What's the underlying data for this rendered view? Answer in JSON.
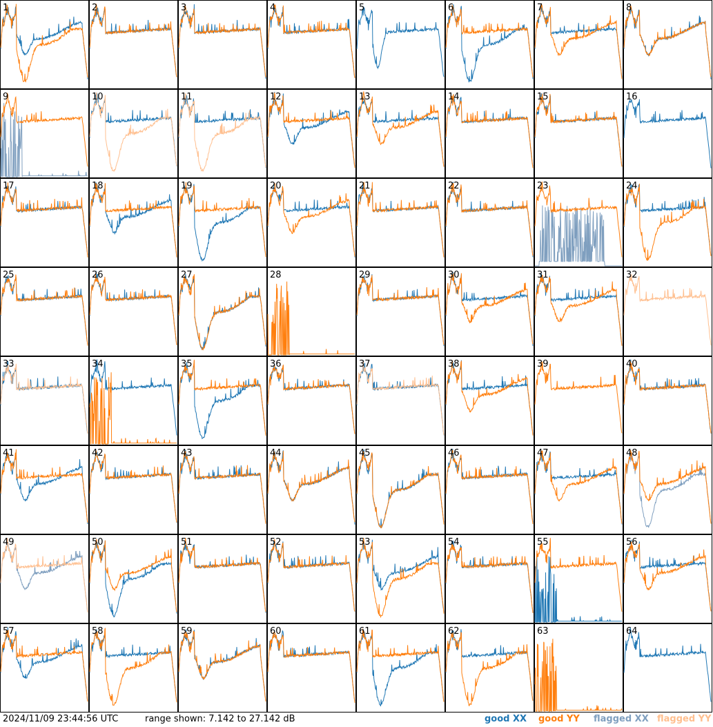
{
  "timestamp": "2024/11/09 23:44:56 UTC",
  "range_text": "range shown: 7.142 to 27.142 dB",
  "legend": {
    "good_xx": "good XX",
    "good_yy": "good YY",
    "flagged_xx": "flagged XX",
    "flagged_yy": "flagged YY"
  },
  "colors": {
    "good_xx": "#1f77b4",
    "good_yy": "#ff7f0e",
    "flagged_xx": "#7f9fbf",
    "flagged_yy": "#ffbf8f"
  },
  "chart_data": {
    "type": "line",
    "layout": "8x8 small multiples",
    "ylim": [
      7.142,
      27.142
    ],
    "yunit": "dB",
    "panels": [
      {
        "id": "1",
        "xx": "good",
        "yy": "good",
        "xx_shape": "mid_dip",
        "yy_shape": "deep_dip"
      },
      {
        "id": "2",
        "xx": "good",
        "yy": "good",
        "xx_shape": "flat",
        "yy_shape": "flat"
      },
      {
        "id": "3",
        "xx": "good",
        "yy": "good",
        "xx_shape": "flat",
        "yy_shape": "flat"
      },
      {
        "id": "4",
        "xx": "good",
        "yy": "good",
        "xx_shape": "flat",
        "yy_shape": "flat"
      },
      {
        "id": "5",
        "xx": "good",
        "yy": "flagged",
        "xx_shape": "dip",
        "yy_shape": "none"
      },
      {
        "id": "6",
        "xx": "good",
        "yy": "good",
        "xx_shape": "deep_dip",
        "yy_shape": "flat"
      },
      {
        "id": "7",
        "xx": "good",
        "yy": "good",
        "xx_shape": "flat",
        "yy_shape": "mid_dip"
      },
      {
        "id": "8",
        "xx": "good",
        "yy": "good",
        "xx_shape": "mid_dip",
        "yy_shape": "mid_dip"
      },
      {
        "id": "9",
        "xx": "flagged",
        "yy": "good",
        "xx_shape": "spikes_low",
        "yy_shape": "flat"
      },
      {
        "id": "10",
        "xx": "good",
        "yy": "flagged",
        "xx_shape": "flat",
        "yy_shape": "deep_dip"
      },
      {
        "id": "11",
        "xx": "good",
        "yy": "flagged",
        "xx_shape": "flat",
        "yy_shape": "deep_dip"
      },
      {
        "id": "12",
        "xx": "good",
        "yy": "good",
        "xx_shape": "mid_dip",
        "yy_shape": "flat"
      },
      {
        "id": "13",
        "xx": "good",
        "yy": "good",
        "xx_shape": "flat",
        "yy_shape": "mid_dip"
      },
      {
        "id": "14",
        "xx": "good",
        "yy": "good",
        "xx_shape": "flat",
        "yy_shape": "flat"
      },
      {
        "id": "15",
        "xx": "good",
        "yy": "good",
        "xx_shape": "flat",
        "yy_shape": "flat"
      },
      {
        "id": "16",
        "xx": "good",
        "yy": "flagged",
        "xx_shape": "flat",
        "yy_shape": "none"
      },
      {
        "id": "17",
        "xx": "good",
        "yy": "good",
        "xx_shape": "flat",
        "yy_shape": "flat"
      },
      {
        "id": "18",
        "xx": "good",
        "yy": "good",
        "xx_shape": "mid_dip",
        "yy_shape": "flat"
      },
      {
        "id": "19",
        "xx": "good",
        "yy": "good",
        "xx_shape": "deep_dip",
        "yy_shape": "flat"
      },
      {
        "id": "20",
        "xx": "good",
        "yy": "good",
        "xx_shape": "flat",
        "yy_shape": "mid_dip"
      },
      {
        "id": "21",
        "xx": "good",
        "yy": "good",
        "xx_shape": "flat",
        "yy_shape": "flat"
      },
      {
        "id": "22",
        "xx": "good",
        "yy": "good",
        "xx_shape": "flat",
        "yy_shape": "flat"
      },
      {
        "id": "23",
        "xx": "flagged",
        "yy": "good",
        "xx_shape": "spikes_mid",
        "yy_shape": "flat"
      },
      {
        "id": "24",
        "xx": "good",
        "yy": "good",
        "xx_shape": "flat",
        "yy_shape": "deep_dip"
      },
      {
        "id": "25",
        "xx": "good",
        "yy": "good",
        "xx_shape": "flat",
        "yy_shape": "flat"
      },
      {
        "id": "26",
        "xx": "good",
        "yy": "good",
        "xx_shape": "flat",
        "yy_shape": "flat"
      },
      {
        "id": "27",
        "xx": "good",
        "yy": "good",
        "xx_shape": "deep_dip",
        "yy_shape": "deep_dip"
      },
      {
        "id": "28",
        "xx": "good",
        "yy": "good",
        "xx_shape": "none",
        "yy_shape": "spikes_low"
      },
      {
        "id": "29",
        "xx": "good",
        "yy": "good",
        "xx_shape": "flat",
        "yy_shape": "flat"
      },
      {
        "id": "30",
        "xx": "good",
        "yy": "good",
        "xx_shape": "flat",
        "yy_shape": "mid_dip"
      },
      {
        "id": "31",
        "xx": "good",
        "yy": "good",
        "xx_shape": "flat",
        "yy_shape": "mid_dip"
      },
      {
        "id": "32",
        "xx": "flagged",
        "yy": "flagged",
        "xx_shape": "none",
        "yy_shape": "flat"
      },
      {
        "id": "33",
        "xx": "good",
        "yy": "flagged",
        "xx_shape": "flat",
        "yy_shape": "flat"
      },
      {
        "id": "34",
        "xx": "good",
        "yy": "good",
        "xx_shape": "flat",
        "yy_shape": "spikes_low"
      },
      {
        "id": "35",
        "xx": "good",
        "yy": "good",
        "xx_shape": "deep_dip",
        "yy_shape": "flat"
      },
      {
        "id": "36",
        "xx": "good",
        "yy": "good",
        "xx_shape": "flat",
        "yy_shape": "flat"
      },
      {
        "id": "37",
        "xx": "good",
        "yy": "flagged",
        "xx_shape": "flat",
        "yy_shape": "flat"
      },
      {
        "id": "38",
        "xx": "good",
        "yy": "good",
        "xx_shape": "flat",
        "yy_shape": "mid_dip"
      },
      {
        "id": "39",
        "xx": "good",
        "yy": "good",
        "xx_shape": "none",
        "yy_shape": "flat"
      },
      {
        "id": "40",
        "xx": "good",
        "yy": "good",
        "xx_shape": "flat",
        "yy_shape": "flat"
      },
      {
        "id": "41",
        "xx": "good",
        "yy": "good",
        "xx_shape": "mid_dip",
        "yy_shape": "flat"
      },
      {
        "id": "42",
        "xx": "good",
        "yy": "good",
        "xx_shape": "flat",
        "yy_shape": "flat"
      },
      {
        "id": "43",
        "xx": "good",
        "yy": "good",
        "xx_shape": "flat",
        "yy_shape": "flat"
      },
      {
        "id": "44",
        "xx": "good",
        "yy": "good",
        "xx_shape": "mid_dip",
        "yy_shape": "mid_dip"
      },
      {
        "id": "45",
        "xx": "good",
        "yy": "good",
        "xx_shape": "deep_dip",
        "yy_shape": "deep_dip"
      },
      {
        "id": "46",
        "xx": "good",
        "yy": "good",
        "xx_shape": "flat",
        "yy_shape": "flat"
      },
      {
        "id": "47",
        "xx": "good",
        "yy": "good",
        "xx_shape": "flat",
        "yy_shape": "mid_dip"
      },
      {
        "id": "48",
        "xx": "flagged",
        "yy": "good",
        "xx_shape": "deep_dip",
        "yy_shape": "mid_dip"
      },
      {
        "id": "49",
        "xx": "flagged",
        "yy": "flagged",
        "xx_shape": "mid_dip",
        "yy_shape": "flat"
      },
      {
        "id": "50",
        "xx": "good",
        "yy": "good",
        "xx_shape": "deep_dip",
        "yy_shape": "mid_dip"
      },
      {
        "id": "51",
        "xx": "good",
        "yy": "good",
        "xx_shape": "flat",
        "yy_shape": "flat"
      },
      {
        "id": "52",
        "xx": "good",
        "yy": "good",
        "xx_shape": "flat",
        "yy_shape": "flat"
      },
      {
        "id": "53",
        "xx": "good",
        "yy": "good",
        "xx_shape": "mid_dip",
        "yy_shape": "deep_dip"
      },
      {
        "id": "54",
        "xx": "good",
        "yy": "good",
        "xx_shape": "flat",
        "yy_shape": "flat"
      },
      {
        "id": "55",
        "xx": "good",
        "yy": "good",
        "xx_shape": "spikes_low",
        "yy_shape": "flat"
      },
      {
        "id": "56",
        "xx": "good",
        "yy": "good",
        "xx_shape": "flat",
        "yy_shape": "mid_dip"
      },
      {
        "id": "57",
        "xx": "good",
        "yy": "good",
        "xx_shape": "mid_dip",
        "yy_shape": "flat"
      },
      {
        "id": "58",
        "xx": "good",
        "yy": "good",
        "xx_shape": "flat",
        "yy_shape": "deep_dip"
      },
      {
        "id": "59",
        "xx": "good",
        "yy": "good",
        "xx_shape": "mid_dip",
        "yy_shape": "mid_dip"
      },
      {
        "id": "60",
        "xx": "good",
        "yy": "good",
        "xx_shape": "flat",
        "yy_shape": "flat"
      },
      {
        "id": "61",
        "xx": "good",
        "yy": "good",
        "xx_shape": "deep_dip",
        "yy_shape": "flat"
      },
      {
        "id": "62",
        "xx": "good",
        "yy": "good",
        "xx_shape": "flat",
        "yy_shape": "deep_dip"
      },
      {
        "id": "63",
        "xx": "good",
        "yy": "good",
        "xx_shape": "none",
        "yy_shape": "spikes_low"
      },
      {
        "id": "64",
        "xx": "good",
        "yy": "flagged",
        "xx_shape": "flat",
        "yy_shape": "none"
      }
    ]
  }
}
